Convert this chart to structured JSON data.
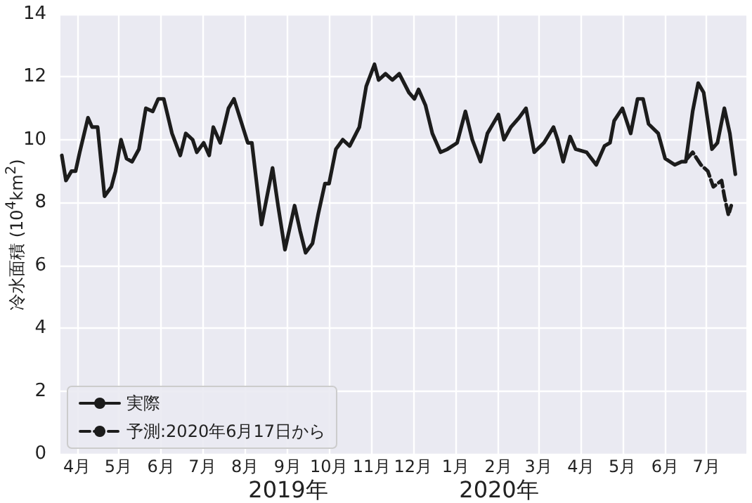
{
  "chart_data": {
    "type": "line",
    "ylabel": "冷水面積 (10$^{4}$km$^{2}$)",
    "annotations": [
      "2019年",
      "2020年"
    ],
    "xlim": [
      "2019-03-20",
      "2020-07-30"
    ],
    "xticks": [
      {
        "value": "2019-04-01",
        "label": "4月"
      },
      {
        "value": "2019-05-01",
        "label": "5月"
      },
      {
        "value": "2019-06-01",
        "label": "6月"
      },
      {
        "value": "2019-07-01",
        "label": "7月"
      },
      {
        "value": "2019-08-01",
        "label": "8月"
      },
      {
        "value": "2019-09-01",
        "label": "9月"
      },
      {
        "value": "2019-10-01",
        "label": "10月"
      },
      {
        "value": "2019-11-01",
        "label": "11月"
      },
      {
        "value": "2019-12-01",
        "label": "12月"
      },
      {
        "value": "2020-01-01",
        "label": "1月"
      },
      {
        "value": "2020-02-01",
        "label": "2月"
      },
      {
        "value": "2020-03-01",
        "label": "3月"
      },
      {
        "value": "2020-04-01",
        "label": "4月"
      },
      {
        "value": "2020-05-01",
        "label": "5月"
      },
      {
        "value": "2020-06-01",
        "label": "6月"
      },
      {
        "value": "2020-07-01",
        "label": "7月"
      }
    ],
    "ylim": [
      0,
      14
    ],
    "yticks": [
      0,
      2,
      4,
      6,
      8,
      10,
      12,
      14
    ],
    "grid": true,
    "legend": "bottom left",
    "marker": "none",
    "series": [
      {
        "name": "実際",
        "color": "#1c1c1c",
        "line_style": "solid",
        "x": [
          "2019-03-21",
          "2019-03-24",
          "2019-03-28",
          "2019-03-31",
          "2019-04-03",
          "2019-04-09",
          "2019-04-12",
          "2019-04-16",
          "2019-04-21",
          "2019-04-26",
          "2019-04-29",
          "2019-05-03",
          "2019-05-07",
          "2019-05-11",
          "2019-05-16",
          "2019-05-21",
          "2019-05-26",
          "2019-05-30",
          "2019-06-03",
          "2019-06-09",
          "2019-06-15",
          "2019-06-19",
          "2019-06-24",
          "2019-06-27",
          "2019-07-02",
          "2019-07-06",
          "2019-07-09",
          "2019-07-14",
          "2019-07-20",
          "2019-07-24",
          "2019-07-29",
          "2019-08-03",
          "2019-08-06",
          "2019-08-13",
          "2019-08-21",
          "2019-08-25",
          "2019-08-30",
          "2019-09-06",
          "2019-09-10",
          "2019-09-14",
          "2019-09-19",
          "2019-09-23",
          "2019-09-28",
          "2019-10-01",
          "2019-10-06",
          "2019-10-11",
          "2019-10-16",
          "2019-10-23",
          "2019-10-28",
          "2019-11-03",
          "2019-11-06",
          "2019-11-11",
          "2019-11-16",
          "2019-11-21",
          "2019-11-28",
          "2019-12-02",
          "2019-12-05",
          "2019-12-10",
          "2019-12-15",
          "2019-12-21",
          "2019-12-26",
          "2020-01-02",
          "2020-01-05",
          "2020-01-08",
          "2020-01-13",
          "2020-01-19",
          "2020-01-24",
          "2020-01-28",
          "2020-02-01",
          "2020-02-05",
          "2020-02-10",
          "2020-02-16",
          "2020-02-21",
          "2020-02-27",
          "2020-03-05",
          "2020-03-12",
          "2020-03-15",
          "2020-03-19",
          "2020-03-24",
          "2020-03-28",
          "2020-04-05",
          "2020-04-12",
          "2020-04-18",
          "2020-04-22",
          "2020-04-25",
          "2020-05-01",
          "2020-05-07",
          "2020-05-12",
          "2020-05-16",
          "2020-05-20",
          "2020-05-27",
          "2020-06-01",
          "2020-06-08",
          "2020-06-13",
          "2020-06-16",
          "2020-06-21",
          "2020-06-25",
          "2020-06-29",
          "2020-07-05",
          "2020-07-09",
          "2020-07-14",
          "2020-07-18",
          "2020-07-22"
        ],
        "values": [
          9.5,
          8.7,
          9.0,
          9.0,
          9.6,
          10.7,
          10.4,
          10.4,
          8.2,
          8.5,
          9.0,
          10.0,
          9.4,
          9.3,
          9.7,
          11.0,
          10.9,
          11.3,
          11.3,
          10.2,
          9.5,
          10.2,
          10.0,
          9.6,
          9.9,
          9.5,
          10.4,
          9.9,
          11.0,
          11.3,
          10.6,
          9.9,
          9.9,
          7.3,
          9.1,
          7.9,
          6.5,
          7.9,
          7.1,
          6.4,
          6.7,
          7.6,
          8.6,
          8.6,
          9.7,
          10.0,
          9.8,
          10.4,
          11.7,
          12.4,
          11.9,
          12.1,
          11.9,
          12.1,
          11.5,
          11.3,
          11.6,
          11.1,
          10.2,
          9.6,
          9.7,
          9.9,
          10.4,
          10.9,
          10.0,
          9.3,
          10.2,
          10.5,
          10.8,
          10.0,
          10.4,
          10.7,
          11.0,
          9.6,
          9.9,
          10.4,
          10.0,
          9.3,
          10.1,
          9.7,
          9.6,
          9.2,
          9.8,
          9.9,
          10.6,
          11.0,
          10.2,
          11.3,
          11.3,
          10.5,
          10.2,
          9.4,
          9.2,
          9.3,
          9.3,
          10.9,
          11.8,
          11.5,
          9.7,
          9.9,
          11.0,
          10.2,
          8.9
        ]
      },
      {
        "name": "予測:2020年6月17日から",
        "color": "#1c1c1c",
        "line_style": "dashed",
        "x": [
          "2020-06-17",
          "2020-06-21",
          "2020-06-27",
          "2020-07-02",
          "2020-07-06",
          "2020-07-12",
          "2020-07-14",
          "2020-07-17",
          "2020-07-19"
        ],
        "values": [
          9.4,
          9.6,
          9.2,
          9.0,
          8.5,
          8.7,
          8.2,
          7.6,
          7.9
        ]
      }
    ]
  }
}
